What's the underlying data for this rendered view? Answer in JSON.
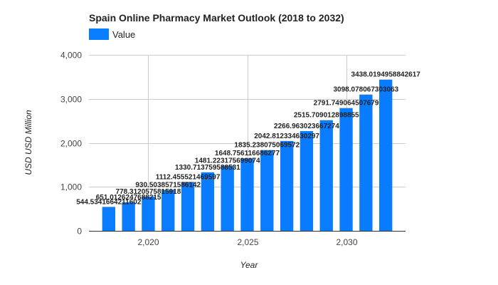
{
  "chart_data": {
    "type": "bar",
    "title": "Spain Online Pharmacy Market Outlook (2018 to 2032)",
    "xlabel": "Year",
    "ylabel": "USD USD Million",
    "legend": {
      "position": "top-left",
      "entries": [
        "Value"
      ]
    },
    "grid": true,
    "color": "#0a7cff",
    "xlim": [
      2017,
      2033
    ],
    "ylim": [
      0,
      4000
    ],
    "x_ticks": [
      2020,
      2025,
      2030
    ],
    "x_tick_labels": [
      "2,020",
      "2,025",
      "2,030"
    ],
    "y_ticks": [
      0,
      1000,
      2000,
      3000,
      4000
    ],
    "y_tick_labels": [
      "0",
      "1,000",
      "2,000",
      "3,000",
      "4,000"
    ],
    "series": [
      {
        "name": "Value",
        "x": [
          2018,
          2019,
          2020,
          2021,
          2022,
          2023,
          2024,
          2025,
          2026,
          2027,
          2028,
          2029,
          2030,
          2031,
          2032
        ],
        "values": [
          544.5341664211602,
          651.0126247688215,
          778.3120575815918,
          930.5038571586142,
          1112.455521469597,
          1330.713759588531,
          1481.223175699074,
          1648.756116686277,
          1835.238075069572,
          2042.812334630297,
          2266.963023667274,
          2515.709012898855,
          2791.749064507679,
          3098.078067303063,
          3438.0194958842617
        ],
        "labels": [
          "544.5341664211602",
          "651.0126247688215",
          "778.3120575815918",
          "930.5038571586142",
          "1112.455521469597",
          "1330.713759588531",
          "1481.223175699074",
          "1648.756116686277",
          "1835.238075069572",
          "2042.812334630297",
          "2266.963023667274",
          "2515.709012898855",
          "2791.749064507679",
          "3098.078067303063",
          "3438.0194958842617"
        ]
      }
    ]
  }
}
